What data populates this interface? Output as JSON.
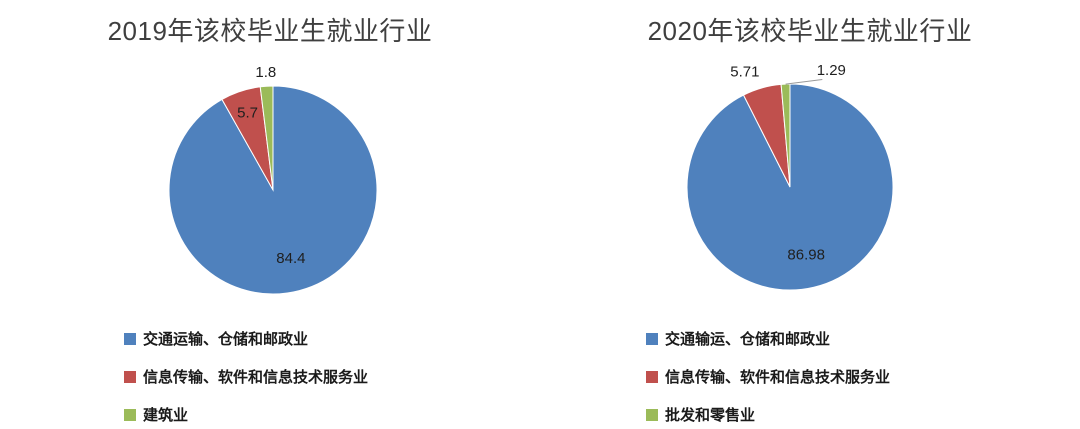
{
  "chart_data": [
    {
      "type": "pie",
      "title": "2019年该校毕业生就业行业",
      "legend_position": "bottom-left",
      "slices": [
        {
          "label": "交通运输、仓储和邮政业",
          "value": 84.4,
          "data_label": "84.4",
          "label_pos": "inside",
          "color": "#4F81BD"
        },
        {
          "label": "信息传输、软件和信息技术服务业",
          "value": 5.7,
          "data_label": "5.7",
          "label_pos": "inside",
          "color": "#C0504D"
        },
        {
          "label": "建筑业",
          "value": 1.8,
          "data_label": "1.8",
          "label_pos": "outside",
          "color": "#9BBB59"
        }
      ]
    },
    {
      "type": "pie",
      "title": "2020年该校毕业生就业行业",
      "legend_position": "bottom-left",
      "slices": [
        {
          "label": "交通输运、仓储和邮政业",
          "value": 86.98,
          "data_label": "86.98",
          "label_pos": "inside",
          "color": "#4F81BD"
        },
        {
          "label": "信息传输、软件和信息技术服务业",
          "value": 5.71,
          "data_label": "5.71",
          "label_pos": "outside",
          "color": "#C0504D"
        },
        {
          "label": "批发和零售业",
          "value": 1.29,
          "data_label": "1.29",
          "label_pos": "outside",
          "color": "#9BBB59"
        }
      ]
    }
  ]
}
